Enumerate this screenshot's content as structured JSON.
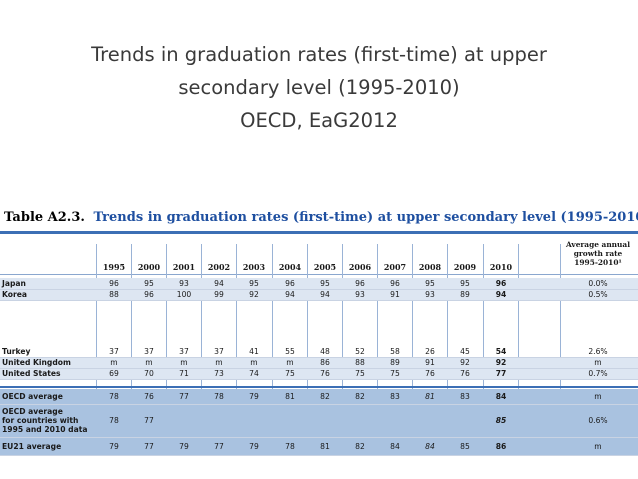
{
  "slide": {
    "title_lines": [
      "Trends in graduation rates (first-time) at upper",
      "secondary level (1995-2010)",
      "OECD, EaG2012"
    ]
  },
  "table": {
    "label": "Table A2.3.",
    "caption": "Trends in graduation rates (first-time) at upper secondary level (1995-2010)",
    "years": [
      "1995",
      "2000",
      "2001",
      "2002",
      "2003",
      "2004",
      "2005",
      "2006",
      "2007",
      "2008",
      "2009",
      "2010"
    ],
    "growth_header": [
      "Average annual",
      "growth rate",
      "1995-2010¹"
    ],
    "rows": [
      {
        "label": [
          "Japan"
        ],
        "values": [
          "96",
          "95",
          "93",
          "94",
          "95",
          "96",
          "95",
          "96",
          "96",
          "95",
          "95",
          "96"
        ],
        "growth": "0.0%"
      },
      {
        "label": [
          "Korea"
        ],
        "values": [
          "88",
          "96",
          "100",
          "99",
          "92",
          "94",
          "94",
          "93",
          "91",
          "93",
          "89",
          "94"
        ],
        "growth": "0.5%"
      },
      {
        "label": [
          "Turkey"
        ],
        "values": [
          "37",
          "37",
          "37",
          "37",
          "41",
          "55",
          "48",
          "52",
          "58",
          "26",
          "45",
          "54"
        ],
        "growth": "2.6%"
      },
      {
        "label": [
          "United Kingdom"
        ],
        "values": [
          "m",
          "m",
          "m",
          "m",
          "m",
          "m",
          "86",
          "88",
          "89",
          "91",
          "92",
          "92"
        ],
        "growth": "m"
      },
      {
        "label": [
          "United States"
        ],
        "values": [
          "69",
          "70",
          "71",
          "73",
          "74",
          "75",
          "76",
          "75",
          "75",
          "76",
          "76",
          "77"
        ],
        "growth": "0.7%"
      },
      {
        "label": [
          "OECD average"
        ],
        "values": [
          "78",
          "76",
          "77",
          "78",
          "79",
          "81",
          "82",
          "82",
          "83",
          "81",
          "83",
          "84"
        ],
        "growth": "m"
      },
      {
        "label": [
          "OECD average",
          "for countries with",
          "1995 and 2010 data"
        ],
        "values": [
          "78",
          "77",
          "",
          "",
          "",
          "",
          "",
          "",
          "",
          "",
          "",
          "85"
        ],
        "growth": "0.6%"
      },
      {
        "label": [
          "EU21 average"
        ],
        "values": [
          "79",
          "77",
          "79",
          "77",
          "79",
          "78",
          "81",
          "82",
          "84",
          "84",
          "85",
          "86"
        ],
        "growth": "m"
      }
    ]
  }
}
